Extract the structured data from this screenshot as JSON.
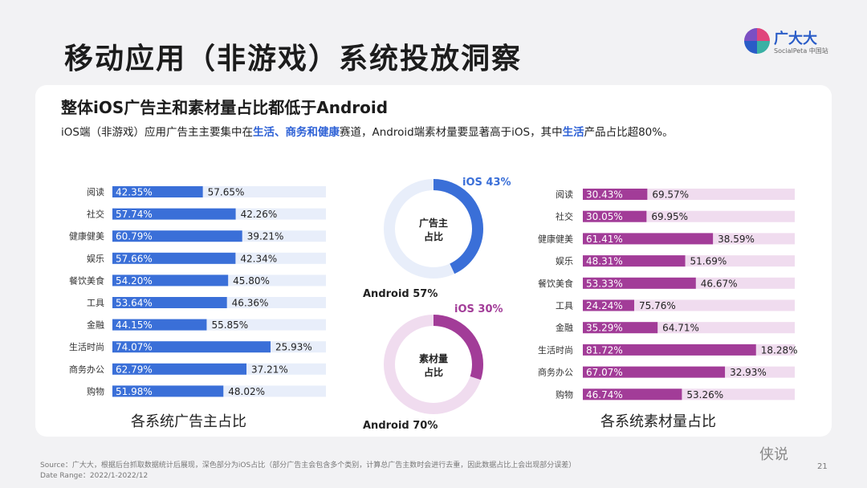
{
  "page": {
    "title": "移动应用（非游戏）系统投放洞察",
    "brand": "广大大",
    "brand_sub": "SocialPeta 中国站",
    "card_title": "整体iOS广告主和素材量占比都低于Android",
    "subtitle": {
      "p1": "iOS端（非游戏）应用广告主主要集中在",
      "h1": "生活、商务和健康",
      "p2": "赛道，Android端素材量要显著高于iOS，其中",
      "h2": "生活",
      "p3": "产品占比超80%。"
    },
    "footer_source": "Source：广大大，根据后台抓取数据统计后展现，深色部分为iOS占比（部分广告主会包含多个类别，计算总广告主数时会进行去重，因此数据占比上会出现部分误差）",
    "footer_date": "Date Range：2022/1-2022/12",
    "page_number": "21",
    "watermark": "侠说"
  },
  "colors": {
    "ios_blue": "#3a6fd8",
    "android_blue": "#e8eefa",
    "ios_purple": "#a23c98",
    "android_purple": "#f0dcef"
  },
  "chart_data": [
    {
      "type": "bar",
      "orientation": "horizontal-stacked-100",
      "title": "各系统广告主占比",
      "categories": [
        "阅读",
        "社交",
        "健康健美",
        "娱乐",
        "餐饮美食",
        "工具",
        "金融",
        "生活时尚",
        "商务办公",
        "购物"
      ],
      "series": [
        {
          "name": "iOS",
          "values": [
            42.35,
            57.74,
            60.79,
            57.66,
            54.2,
            53.64,
            44.15,
            74.07,
            62.79,
            51.98
          ],
          "labels": [
            "42.35%",
            "57.74%",
            "60.79%",
            "57.66%",
            "54.20%",
            "53.64%",
            "44.15%",
            "74.07%",
            "62.79%",
            "51.98%"
          ]
        },
        {
          "name": "Android",
          "values": [
            57.65,
            42.26,
            39.21,
            42.34,
            45.8,
            46.36,
            55.85,
            25.93,
            37.21,
            48.02
          ],
          "labels": [
            "57.65%",
            "42.26%",
            "39.21%",
            "42.34%",
            "45.80%",
            "46.36%",
            "55.85%",
            "25.93%",
            "37.21%",
            "48.02%"
          ]
        }
      ]
    },
    {
      "type": "pie",
      "variant": "donut",
      "center_label": [
        "广告主",
        "占比"
      ],
      "slices": [
        {
          "name": "iOS",
          "value": 43,
          "label": "iOS 43%"
        },
        {
          "name": "Android",
          "value": 57,
          "label": "Android 57%"
        }
      ]
    },
    {
      "type": "pie",
      "variant": "donut",
      "center_label": [
        "素材量",
        "占比"
      ],
      "slices": [
        {
          "name": "iOS",
          "value": 30,
          "label": "iOS 30%"
        },
        {
          "name": "Android",
          "value": 70,
          "label": "Android 70%"
        }
      ]
    },
    {
      "type": "bar",
      "orientation": "horizontal-stacked-100",
      "title": "各系统素材量占比",
      "categories": [
        "阅读",
        "社交",
        "健康健美",
        "娱乐",
        "餐饮美食",
        "工具",
        "金融",
        "生活时尚",
        "商务办公",
        "购物"
      ],
      "series": [
        {
          "name": "iOS",
          "values": [
            30.43,
            30.05,
            61.41,
            48.31,
            53.33,
            24.24,
            35.29,
            81.72,
            67.07,
            46.74
          ],
          "labels": [
            "30.43%",
            "30.05%",
            "61.41%",
            "48.31%",
            "53.33%",
            "24.24%",
            "35.29%",
            "81.72%",
            "67.07%",
            "46.74%"
          ]
        },
        {
          "name": "Android",
          "values": [
            69.57,
            69.95,
            38.59,
            51.69,
            46.67,
            75.76,
            64.71,
            18.28,
            32.93,
            53.26
          ],
          "labels": [
            "69.57%",
            "69.95%",
            "38.59%",
            "51.69%",
            "46.67%",
            "75.76%",
            "64.71%",
            "18.28%",
            "32.93%",
            "53.26%"
          ]
        }
      ]
    }
  ]
}
